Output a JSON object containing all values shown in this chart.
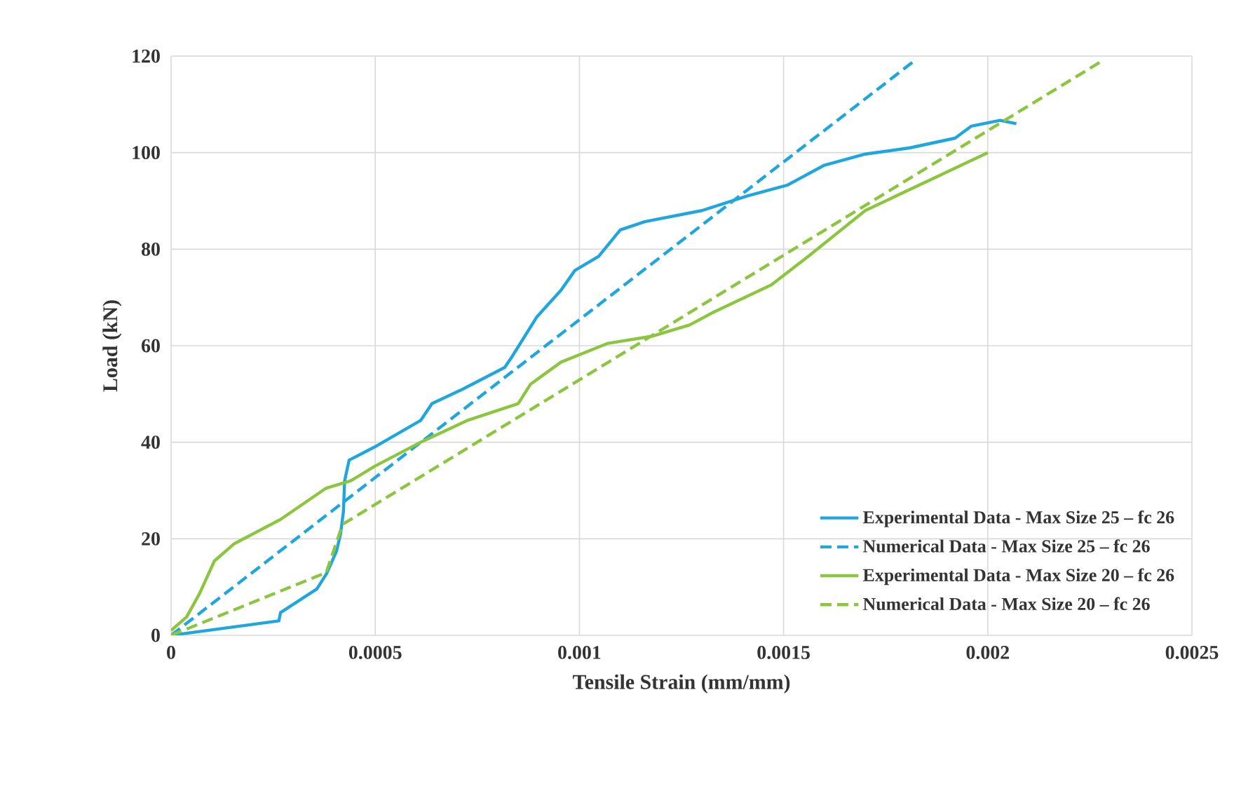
{
  "chart_data": {
    "type": "line",
    "xlabel": "Tensile Strain (mm/mm)",
    "ylabel": "Load (kN)",
    "xlim": [
      0,
      0.0025
    ],
    "ylim": [
      0,
      120
    ],
    "xticks": [
      0,
      0.0005,
      0.001,
      0.0015,
      0.002,
      0.0025
    ],
    "yticks": [
      0,
      20,
      40,
      60,
      80,
      100,
      120
    ],
    "grid": true,
    "legend": "bottom right",
    "series": [
      {
        "name": "Experimental Data - Max Size 25 – fc 26",
        "color": "#1fa7dd",
        "line_style": "solid",
        "x": [
          0,
          0.000264,
          0.000268,
          0.000357,
          0.000381,
          0.000405,
          0.000415,
          0.000422,
          0.000425,
          0.000436,
          0.000498,
          0.000611,
          0.000639,
          0.000714,
          0.000817,
          0.000834,
          0.000896,
          0.000955,
          0.000989,
          0.001047,
          0.0011,
          0.00116,
          0.0013,
          0.00141,
          0.00151,
          0.0016,
          0.0017,
          0.00181,
          0.00192,
          0.00196,
          0.00203,
          0.00207
        ],
        "values": [
          0,
          3,
          4.7,
          9.6,
          12.8,
          17.4,
          21,
          25.6,
          32,
          36.3,
          39,
          44.5,
          48,
          51,
          55.5,
          57.6,
          66,
          71.5,
          75.6,
          78.5,
          84,
          85.7,
          88,
          91,
          93.3,
          97.4,
          99.7,
          101,
          103,
          105.5,
          106.7,
          106
        ]
      },
      {
        "name": "Numerical Data - Max Size 25 – fc 26",
        "color": "#1fa7dd",
        "line_style": "dashed",
        "x": [
          0,
          0.00182
        ],
        "values": [
          0,
          119
        ]
      },
      {
        "name": "Experimental Data - Max Size 20 – fc 26",
        "color": "#8cc63f",
        "line_style": "solid",
        "x": [
          0,
          3.8e-05,
          7e-05,
          0.000106,
          0.000155,
          0.000268,
          0.00038,
          0.00044,
          0.000498,
          0.000611,
          0.000725,
          0.00085,
          0.00088,
          0.000955,
          0.00107,
          0.00118,
          0.00127,
          0.00133,
          0.00147,
          0.00156,
          0.0017,
          0.00187,
          0.002
        ],
        "values": [
          1,
          3.8,
          8.7,
          15.4,
          19,
          24,
          30.5,
          32,
          35,
          40,
          44.5,
          48,
          52,
          56.6,
          60.5,
          62,
          64.3,
          67,
          72.6,
          78.5,
          88,
          94.8,
          100
        ]
      },
      {
        "name": "Numerical Data - Max Size 20 – fc 26",
        "color": "#8cc63f",
        "line_style": "dashed",
        "x": [
          0,
          0.00038,
          0.00042,
          0.00228
        ],
        "values": [
          0,
          13,
          23,
          119
        ]
      }
    ]
  }
}
